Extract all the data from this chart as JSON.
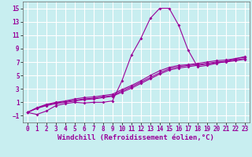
{
  "xlabel": "Windchill (Refroidissement éolien,°C)",
  "background_color": "#c8eef0",
  "grid_color": "#ffffff",
  "line_color": "#990099",
  "xlim": [
    -0.5,
    23.5
  ],
  "ylim": [
    -2.0,
    16.0
  ],
  "xticks": [
    0,
    1,
    2,
    3,
    4,
    5,
    6,
    7,
    8,
    9,
    10,
    11,
    12,
    13,
    14,
    15,
    16,
    17,
    18,
    19,
    20,
    21,
    22,
    23
  ],
  "yticks": [
    -1,
    1,
    3,
    5,
    7,
    9,
    11,
    13,
    15
  ],
  "curve1_x": [
    0,
    1,
    2,
    3,
    4,
    5,
    6,
    7,
    8,
    9,
    10,
    11,
    12,
    13,
    14,
    15,
    16,
    17,
    18,
    19,
    20,
    21,
    22,
    23
  ],
  "curve1_y": [
    -0.5,
    -0.8,
    -0.3,
    0.5,
    0.8,
    1.0,
    0.9,
    1.0,
    1.0,
    1.2,
    4.2,
    8.0,
    10.5,
    13.5,
    15.0,
    15.0,
    12.5,
    8.8,
    6.3,
    6.5,
    6.8,
    7.1,
    7.5,
    7.8
  ],
  "curve2_x": [
    0,
    1,
    2,
    3,
    4,
    5,
    6,
    7,
    8,
    9,
    10,
    11,
    12,
    13,
    14,
    15,
    16,
    17,
    18,
    19,
    20,
    21,
    22,
    23
  ],
  "curve2_y": [
    -0.5,
    0.1,
    0.5,
    0.8,
    1.0,
    1.2,
    1.4,
    1.5,
    1.7,
    1.9,
    2.5,
    3.1,
    3.8,
    4.5,
    5.2,
    5.8,
    6.1,
    6.3,
    6.5,
    6.7,
    6.9,
    7.0,
    7.2,
    7.4
  ],
  "curve3_x": [
    0,
    1,
    2,
    3,
    4,
    5,
    6,
    7,
    8,
    9,
    10,
    11,
    12,
    13,
    14,
    15,
    16,
    17,
    18,
    19,
    20,
    21,
    22,
    23
  ],
  "curve3_y": [
    -0.5,
    0.1,
    0.6,
    0.9,
    1.1,
    1.3,
    1.5,
    1.6,
    1.8,
    2.0,
    2.7,
    3.3,
    4.0,
    4.7,
    5.4,
    6.0,
    6.3,
    6.5,
    6.6,
    6.8,
    7.0,
    7.1,
    7.3,
    7.5
  ],
  "curve4_x": [
    0,
    1,
    2,
    3,
    4,
    5,
    6,
    7,
    8,
    9,
    10,
    11,
    12,
    13,
    14,
    15,
    16,
    17,
    18,
    19,
    20,
    21,
    22,
    23
  ],
  "curve4_y": [
    -0.5,
    0.2,
    0.7,
    1.0,
    1.2,
    1.5,
    1.7,
    1.8,
    2.0,
    2.2,
    2.9,
    3.5,
    4.2,
    5.0,
    5.7,
    6.2,
    6.5,
    6.6,
    6.8,
    7.0,
    7.2,
    7.3,
    7.5,
    7.7
  ],
  "marker": "D",
  "markersize": 2.0,
  "linewidth": 0.8,
  "xlabel_fontsize": 6.5,
  "tick_fontsize": 5.5
}
